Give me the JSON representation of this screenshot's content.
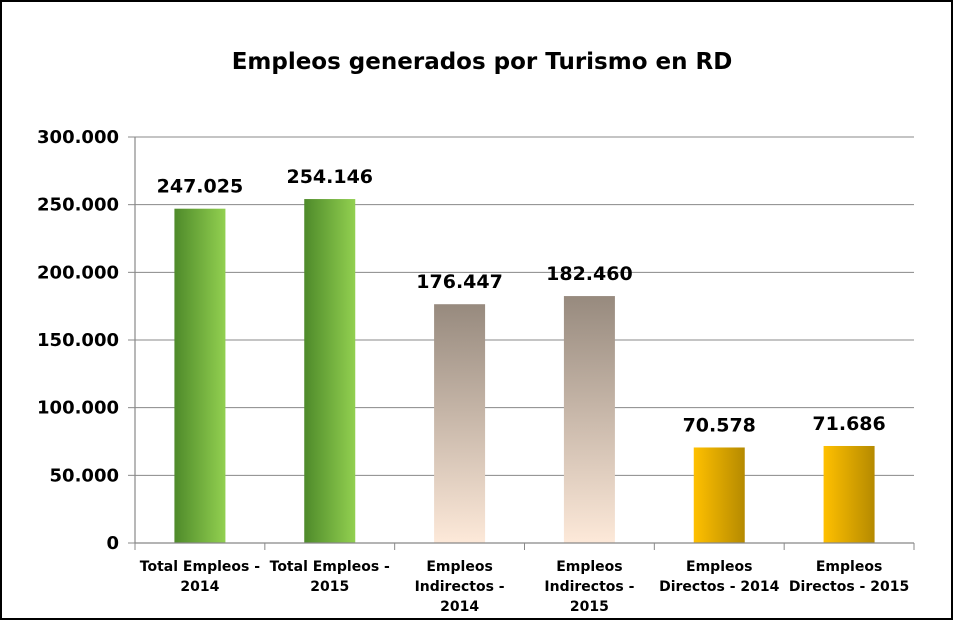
{
  "chart_data": {
    "type": "bar",
    "title": "Empleos generados por Turismo en RD",
    "xlabel": "",
    "ylabel": "",
    "ylim": [
      0,
      300000
    ],
    "yticks": [
      0,
      50000,
      100000,
      150000,
      200000,
      250000,
      300000
    ],
    "ytick_labels": [
      "0",
      "50.000",
      "100.000",
      "150.000",
      "200.000",
      "250.000",
      "300.000"
    ],
    "grid": true,
    "categories": [
      [
        "Total Empleos -",
        "2014"
      ],
      [
        "Total Empleos -",
        "2015"
      ],
      [
        "Empleos",
        "Indirectos -",
        "2014"
      ],
      [
        "Empleos",
        "Indirectos -",
        "2015"
      ],
      [
        "Empleos",
        "Directos - 2014"
      ],
      [
        "Empleos",
        "Directos - 2015"
      ]
    ],
    "values": [
      247025,
      254146,
      176447,
      182460,
      70578,
      71686
    ],
    "data_labels": [
      "247.025",
      "254.146",
      "176.447",
      "182.460",
      "70.578",
      "71.686"
    ],
    "bar_colors": [
      "green",
      "green",
      "taupe",
      "taupe",
      "gold",
      "gold"
    ]
  },
  "colors": {
    "green_dark": "#4e8a2a",
    "green_light": "#92d050",
    "taupe_top": "#978a7e",
    "taupe_bottom": "#fde9d9",
    "gold_light": "#ffc000",
    "gold_dark": "#b58a00",
    "grid": "#888888",
    "frame": "#000000"
  }
}
